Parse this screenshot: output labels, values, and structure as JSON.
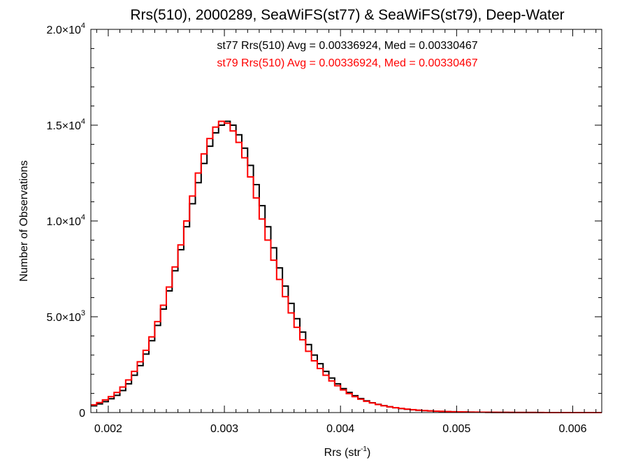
{
  "chart_data": {
    "type": "histogram",
    "title": "Rrs(510), 2000289, SeaWiFS(st77) & SeaWiFS(st79), Deep-Water",
    "xlabel": {
      "base": "Rrs (str",
      "sup": "-1",
      "tail": ")"
    },
    "ylabel": "Number of Observations",
    "xlim": [
      0.00185,
      0.00625
    ],
    "ylim": [
      0,
      20000
    ],
    "xticks": [
      {
        "value": 0.002,
        "label": "0.002"
      },
      {
        "value": 0.003,
        "label": "0.003"
      },
      {
        "value": 0.004,
        "label": "0.004"
      },
      {
        "value": 0.005,
        "label": "0.005"
      },
      {
        "value": 0.006,
        "label": "0.006"
      }
    ],
    "yticks": [
      {
        "value": 0,
        "mant": "0",
        "exp": ""
      },
      {
        "value": 5000,
        "mant": "5.0×10",
        "exp": "3"
      },
      {
        "value": 10000,
        "mant": "1.0×10",
        "exp": "4"
      },
      {
        "value": 15000,
        "mant": "1.5×10",
        "exp": "4"
      },
      {
        "value": 20000,
        "mant": "2.0×10",
        "exp": "4"
      }
    ],
    "grid": false,
    "legend_position": "top-center",
    "annotations": [
      {
        "text": "st77 Rrs(510) Avg = 0.00336924, Med = 0.00330467",
        "color": "#000000"
      },
      {
        "text": "st79 Rrs(510) Avg = 0.00336924, Med = 0.00330467",
        "color": "#ff0000"
      }
    ],
    "series": [
      {
        "name": "st77",
        "color": "#000000",
        "x": [
          0.00185,
          0.0019,
          0.00195,
          0.002,
          0.00205,
          0.0021,
          0.00215,
          0.0022,
          0.00225,
          0.0023,
          0.00235,
          0.0024,
          0.00245,
          0.0025,
          0.00255,
          0.0026,
          0.00265,
          0.0027,
          0.00275,
          0.0028,
          0.00285,
          0.0029,
          0.00295,
          0.003,
          0.00305,
          0.0031,
          0.00315,
          0.0032,
          0.00325,
          0.0033,
          0.00335,
          0.0034,
          0.00345,
          0.0035,
          0.00355,
          0.0036,
          0.00365,
          0.0037,
          0.00375,
          0.0038,
          0.00385,
          0.0039,
          0.00395,
          0.004,
          0.00405,
          0.0041,
          0.00415,
          0.0042,
          0.00425,
          0.0043,
          0.00435,
          0.0044,
          0.00445,
          0.0045,
          0.00455,
          0.0046,
          0.00465,
          0.0047,
          0.00475,
          0.0048,
          0.00485,
          0.0049,
          0.00495,
          0.005,
          0.00505,
          0.0051,
          0.00515,
          0.0052,
          0.00525,
          0.0053,
          0.00535,
          0.0054,
          0.00545,
          0.0055,
          0.00555,
          0.0056,
          0.00565,
          0.0057,
          0.00575,
          0.0058,
          0.00585,
          0.0059,
          0.00595,
          0.006,
          0.00605,
          0.0061,
          0.00615,
          0.0062
        ],
        "y": [
          350,
          450,
          570,
          720,
          900,
          1150,
          1500,
          1950,
          2450,
          3050,
          3750,
          4550,
          5400,
          6350,
          7400,
          8500,
          9700,
          10900,
          12000,
          13000,
          13900,
          14600,
          15000,
          15200,
          15000,
          14500,
          13800,
          12900,
          11900,
          10800,
          9700,
          8600,
          7550,
          6600,
          5700,
          4900,
          4200,
          3550,
          3000,
          2550,
          2150,
          1800,
          1500,
          1250,
          1050,
          880,
          730,
          610,
          510,
          430,
          360,
          300,
          250,
          210,
          175,
          145,
          120,
          100,
          85,
          70,
          58,
          48,
          40,
          33,
          28,
          23,
          19,
          16,
          13,
          11,
          9,
          7,
          6,
          5,
          4,
          3,
          3,
          2,
          2,
          1,
          1,
          1,
          1,
          0,
          0,
          0,
          0,
          0
        ]
      },
      {
        "name": "st79",
        "color": "#ff0000",
        "x": [
          0.00185,
          0.0019,
          0.00195,
          0.002,
          0.00205,
          0.0021,
          0.00215,
          0.0022,
          0.00225,
          0.0023,
          0.00235,
          0.0024,
          0.00245,
          0.0025,
          0.00255,
          0.0026,
          0.00265,
          0.0027,
          0.00275,
          0.0028,
          0.00285,
          0.0029,
          0.00295,
          0.003,
          0.00305,
          0.0031,
          0.00315,
          0.0032,
          0.00325,
          0.0033,
          0.00335,
          0.0034,
          0.00345,
          0.0035,
          0.00355,
          0.0036,
          0.00365,
          0.0037,
          0.00375,
          0.0038,
          0.00385,
          0.0039,
          0.00395,
          0.004,
          0.00405,
          0.0041,
          0.00415,
          0.0042,
          0.00425,
          0.0043,
          0.00435,
          0.0044,
          0.00445,
          0.0045,
          0.00455,
          0.0046,
          0.00465,
          0.0047,
          0.00475,
          0.0048,
          0.00485,
          0.0049,
          0.00495,
          0.005,
          0.00505,
          0.0051,
          0.00515,
          0.0052,
          0.00525,
          0.0053,
          0.00535,
          0.0054,
          0.00545,
          0.0055,
          0.00555,
          0.0056,
          0.00565,
          0.0057,
          0.00575,
          0.0058,
          0.00585,
          0.0059,
          0.00595,
          0.006,
          0.00605,
          0.0061,
          0.00615,
          0.0062
        ],
        "y": [
          400,
          520,
          660,
          830,
          1050,
          1330,
          1700,
          2150,
          2650,
          3250,
          3950,
          4750,
          5600,
          6550,
          7600,
          8750,
          10000,
          11300,
          12500,
          13500,
          14300,
          14900,
          15200,
          15100,
          14700,
          14100,
          13300,
          12300,
          11200,
          10100,
          9000,
          7950,
          6950,
          6050,
          5200,
          4450,
          3800,
          3200,
          2700,
          2300,
          1950,
          1650,
          1400,
          1180,
          990,
          830,
          700,
          590,
          500,
          420,
          355,
          300,
          255,
          215,
          180,
          150,
          125,
          105,
          88,
          74,
          62,
          52,
          43,
          36,
          30,
          25,
          21,
          17,
          14,
          12,
          10,
          8,
          7,
          6,
          5,
          4,
          3,
          3,
          2,
          2,
          1,
          1,
          1,
          1,
          0,
          0,
          0,
          0
        ]
      }
    ]
  }
}
